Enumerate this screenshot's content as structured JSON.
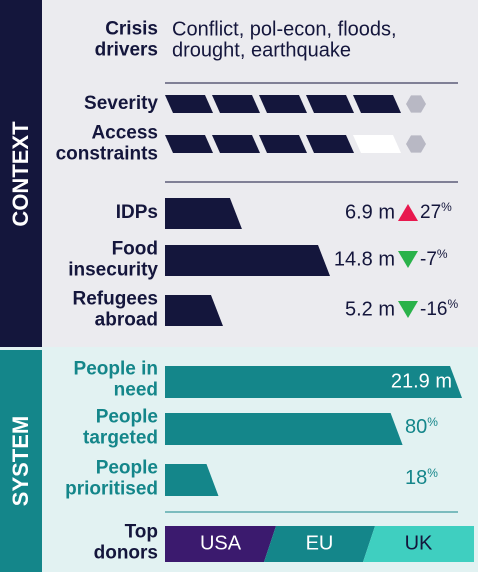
{
  "context": {
    "section_label": "CONTEXT",
    "crisis_drivers": {
      "label": [
        "Crisis",
        "drivers"
      ],
      "text": [
        "Conflict, pol-econ, floods,",
        "drought, earthquake"
      ]
    },
    "ratings": [
      {
        "label": [
          "Severity"
        ],
        "level": 5,
        "scale": 5
      },
      {
        "label": [
          "Access",
          "constraints"
        ],
        "level": 4,
        "scale": 5
      }
    ],
    "indicators": [
      {
        "label": [
          "IDPs"
        ],
        "value": 6.9,
        "value_label": "6.9 m",
        "change": 27,
        "change_unit": "%"
      },
      {
        "label": [
          "Food",
          "insecurity"
        ],
        "value": 14.8,
        "value_label": "14.8 m",
        "change": -7,
        "change_unit": "%"
      },
      {
        "label": [
          "Refugees",
          "abroad"
        ],
        "value": 5.2,
        "value_label": "5.2 m",
        "change": -16,
        "change_unit": "%"
      }
    ]
  },
  "system": {
    "section_label": "SYSTEM",
    "people_in_need": {
      "label": [
        "People in",
        "need"
      ],
      "value": 21.9,
      "value_label": "21.9 m"
    },
    "shares": [
      {
        "label": [
          "People",
          "targeted"
        ],
        "value": 80,
        "unit": "%"
      },
      {
        "label": [
          "People",
          "prioritised"
        ],
        "value": 18,
        "unit": "%"
      }
    ],
    "top_donors": {
      "label": [
        "Top",
        "donors"
      ],
      "donors": [
        "USA",
        "EU",
        "UK"
      ]
    }
  }
}
